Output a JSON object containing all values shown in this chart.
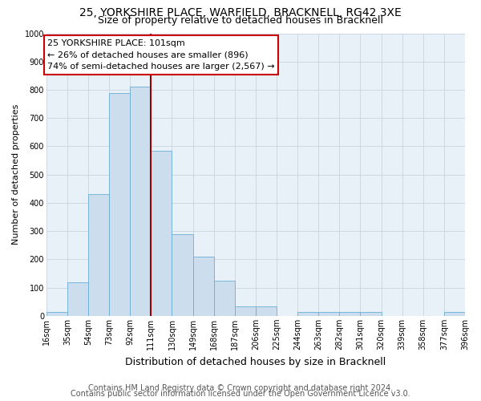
{
  "title1": "25, YORKSHIRE PLACE, WARFIELD, BRACKNELL, RG42 3XE",
  "title2": "Size of property relative to detached houses in Bracknell",
  "xlabel": "Distribution of detached houses by size in Bracknell",
  "ylabel": "Number of detached properties",
  "footer1": "Contains HM Land Registry data © Crown copyright and database right 2024.",
  "footer2": "Contains public sector information licensed under the Open Government Licence v3.0.",
  "annotation_line1": "25 YORKSHIRE PLACE: 101sqm",
  "annotation_line2": "← 26% of detached houses are smaller (896)",
  "annotation_line3": "74% of semi-detached houses are larger (2,567) →",
  "bin_edges": [
    16,
    35,
    54,
    73,
    92,
    111,
    130,
    149,
    168,
    187,
    206,
    225,
    244,
    263,
    282,
    301,
    320,
    339,
    358,
    377,
    396
  ],
  "bin_labels": [
    "16sqm",
    "35sqm",
    "54sqm",
    "73sqm",
    "92sqm",
    "111sqm",
    "130sqm",
    "149sqm",
    "168sqm",
    "187sqm",
    "206sqm",
    "225sqm",
    "244sqm",
    "263sqm",
    "282sqm",
    "301sqm",
    "320sqm",
    "339sqm",
    "358sqm",
    "377sqm",
    "396sqm"
  ],
  "counts": [
    15,
    120,
    430,
    790,
    810,
    585,
    290,
    210,
    125,
    35,
    35,
    0,
    15,
    15,
    15,
    15,
    0,
    0,
    0,
    15
  ],
  "bar_color": "#ccdded",
  "bar_edge_color": "#6aaed6",
  "vline_color": "#990000",
  "vline_x": 111,
  "annotation_box_color": "#ffffff",
  "annotation_box_edge": "#cc0000",
  "plot_bg_color": "#e8f0f8",
  "grid_color": "#c8d4e0",
  "ylim": [
    0,
    1000
  ],
  "yticks": [
    0,
    100,
    200,
    300,
    400,
    500,
    600,
    700,
    800,
    900,
    1000
  ],
  "title1_fontsize": 10,
  "title2_fontsize": 9,
  "xlabel_fontsize": 9,
  "ylabel_fontsize": 8,
  "tick_fontsize": 7,
  "footer_fontsize": 7,
  "annotation_fontsize": 8
}
